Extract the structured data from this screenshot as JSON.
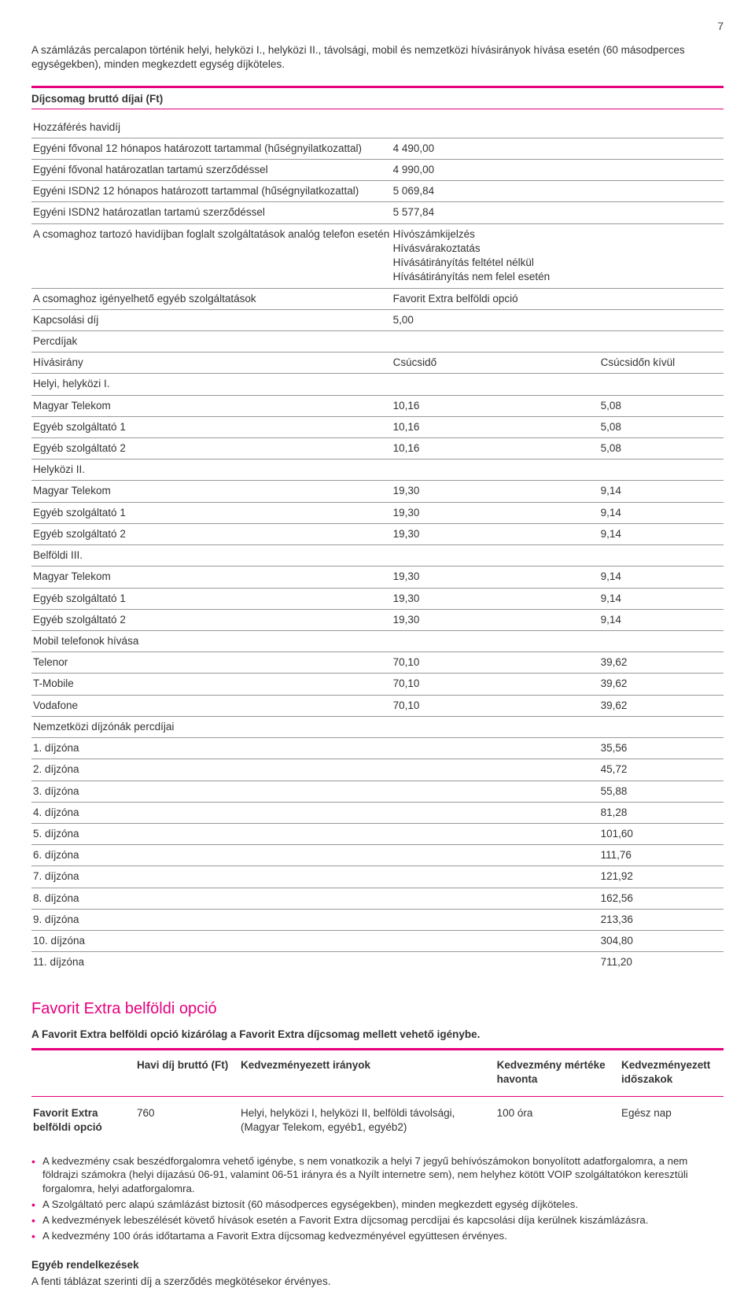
{
  "page_number": "7",
  "intro": "A számlázás percalapon történik helyi, helyközi I., helyközi II., távolsági, mobil és nemzetközi hívásirányok hívása esetén (60 másodperces egységekben), minden megkezdett egység díjköteles.",
  "fees_title": "Díjcsomag bruttó díjai (Ft)",
  "access_heading": "Hozzáférés havidíj",
  "access_rows": [
    {
      "label": "Egyéni fővonal 12 hónapos határozott tartammal (hűségnyilatkozattal)",
      "value": "4 490,00"
    },
    {
      "label": "Egyéni fővonal határozatlan tartamú szerződéssel",
      "value": "4 990,00"
    },
    {
      "label": "Egyéni ISDN2 12 hónapos határozott tartammal (hűségnyilatkozattal)",
      "value": "5 069,84"
    },
    {
      "label": "Egyéni ISDN2 határozatlan tartamú szerződéssel",
      "value": "5 577,84"
    }
  ],
  "bundled": {
    "label": "A csomaghoz tartozó havidíjban foglalt szolgáltatások analóg telefon esetén",
    "lines": [
      "Hívószámkijelzés",
      "Hívásvárakoztatás",
      "Hívásátirányítás feltétel nélkül",
      "Hívásátirányítás nem felel esetén"
    ]
  },
  "optional_services": {
    "label": "A csomaghoz igényelhető egyéb szolgáltatások",
    "value": "Favorit Extra belföldi opció"
  },
  "connection_fee": {
    "label": "Kapcsolási díj",
    "value": "5,00"
  },
  "rates_heading": "Percdíjak",
  "rate_cols": {
    "dir": "Hívásirány",
    "peak": "Csúcsidő",
    "off": "Csúcsidőn kívül"
  },
  "rate_groups": [
    {
      "title": "Helyi, helyközi I.",
      "rows": [
        {
          "label": "Magyar Telekom",
          "peak": "10,16",
          "off": "5,08"
        },
        {
          "label": "Egyéb szolgáltató 1",
          "peak": "10,16",
          "off": "5,08"
        },
        {
          "label": "Egyéb szolgáltató 2",
          "peak": "10,16",
          "off": "5,08"
        }
      ]
    },
    {
      "title": "Helyközi II.",
      "rows": [
        {
          "label": "Magyar Telekom",
          "peak": "19,30",
          "off": "9,14"
        },
        {
          "label": "Egyéb szolgáltató 1",
          "peak": "19,30",
          "off": "9,14"
        },
        {
          "label": "Egyéb szolgáltató 2",
          "peak": "19,30",
          "off": "9,14"
        }
      ]
    },
    {
      "title": "Belföldi III.",
      "rows": [
        {
          "label": "Magyar Telekom",
          "peak": "19,30",
          "off": "9,14"
        },
        {
          "label": "Egyéb szolgáltató 1",
          "peak": "19,30",
          "off": "9,14"
        },
        {
          "label": "Egyéb szolgáltató 2",
          "peak": "19,30",
          "off": "9,14"
        }
      ]
    },
    {
      "title": "Mobil telefonok hívása",
      "rows": [
        {
          "label": "Telenor",
          "peak": "70,10",
          "off": "39,62"
        },
        {
          "label": "T-Mobile",
          "peak": "70,10",
          "off": "39,62"
        },
        {
          "label": "Vodafone",
          "peak": "70,10",
          "off": "39,62"
        }
      ]
    }
  ],
  "intl_heading": "Nemzetközi díjzónák percdíjai",
  "intl_rows": [
    {
      "label": "1. díjzóna",
      "value": "35,56"
    },
    {
      "label": "2. díjzóna",
      "value": "45,72"
    },
    {
      "label": "3. díjzóna",
      "value": "55,88"
    },
    {
      "label": "4. díjzóna",
      "value": "81,28"
    },
    {
      "label": "5. díjzóna",
      "value": "101,60"
    },
    {
      "label": "6. díjzóna",
      "value": "111,76"
    },
    {
      "label": "7. díjzóna",
      "value": "121,92"
    },
    {
      "label": "8. díjzóna",
      "value": "162,56"
    },
    {
      "label": "9. díjzóna",
      "value": "213,36"
    },
    {
      "label": "10. díjzóna",
      "value": "304,80"
    },
    {
      "label": "11. díjzóna",
      "value": "711,20"
    }
  ],
  "option_section": {
    "title": "Favorit Extra belföldi opció",
    "subtitle": "A Favorit Extra belföldi opció kizárólag a Favorit Extra díjcsomag mellett vehető igénybe.",
    "cols": {
      "c1": "",
      "c2": "Havi díj bruttó (Ft)",
      "c3": "Kedvezményezett irányok",
      "c4": "Kedvezmény mértéke havonta",
      "c5": "Kedvezményezett időszakok"
    },
    "row": {
      "name": "Favorit Extra belföldi opció",
      "fee": "760",
      "dirs": "Helyi, helyközi I, helyközi II, belföldi távolsági, (Magyar Telekom, egyéb1, egyéb2)",
      "amount": "100 óra",
      "period": "Egész nap"
    }
  },
  "notes": [
    "A kedvezmény csak beszédforgalomra vehető igénybe, s nem vonatkozik a helyi 7 jegyű behívószámokon bonyolított adatforgalomra, a nem földrajzi számokra (helyi díjazású 06-91, valamint 06-51 irányra és a Nyílt internetre sem), nem helyhez kötött VOIP szolgáltatókon keresztüli forgalomra, helyi adatforgalomra.",
    "A Szolgáltató perc alapú számlázást biztosít (60 másodperces egységekben), minden megkezdett egység díjköteles.",
    "A kedvezmények lebeszélését követő hívások esetén a Favorit Extra díjcsomag percdíjai és kapcsolási díja kerülnek kiszámlázásra.",
    "A kedvezmény 100 órás időtartama a Favorit Extra díjcsomag kedvezményével együttesen érvényes."
  ],
  "closing": {
    "title": "Egyéb rendelkezések",
    "text": "A fenti táblázat szerinti díj a szerződés megkötésekor érvényes."
  },
  "colors": {
    "accent": "#e6007e",
    "text": "#333333",
    "border": "#999999"
  }
}
